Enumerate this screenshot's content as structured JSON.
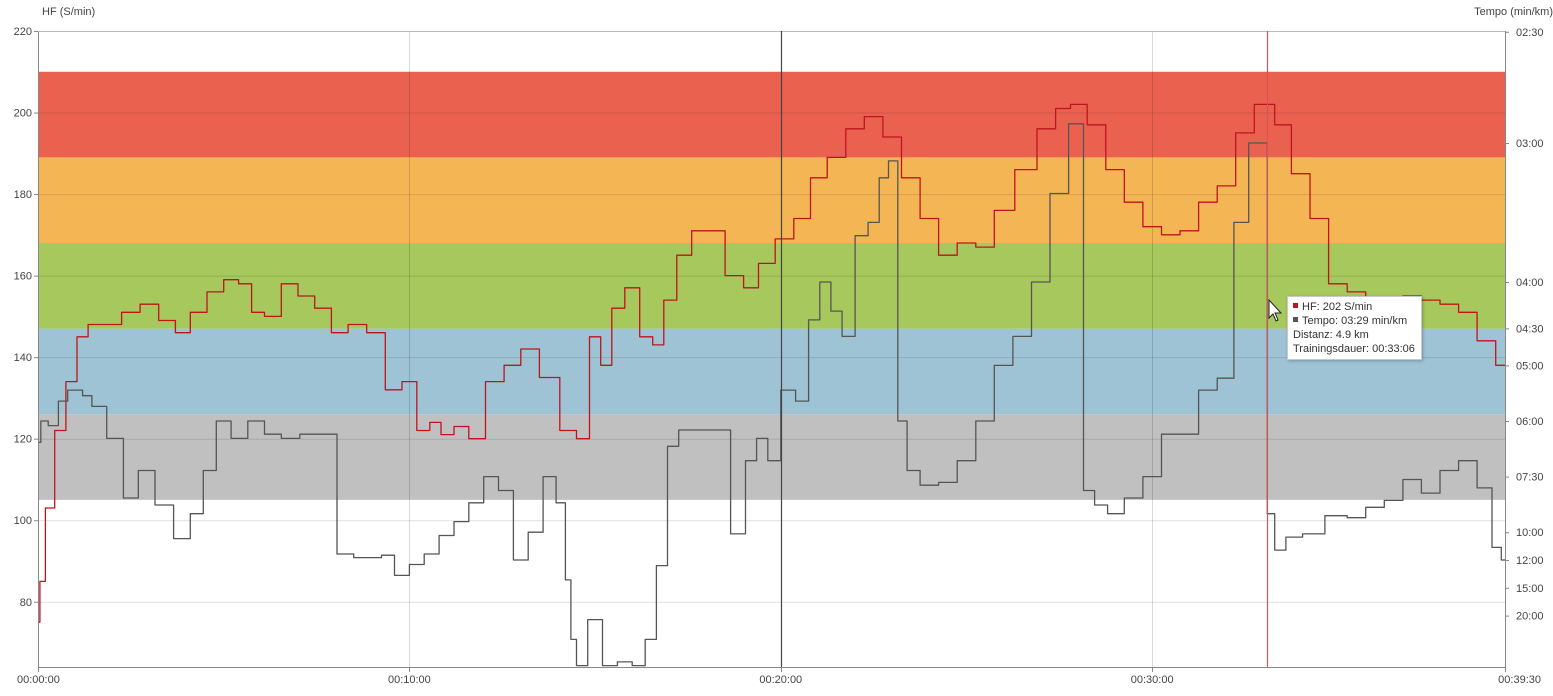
{
  "chart_data": {
    "type": "line",
    "left_axis_label": "HF (S/min)",
    "right_axis_label": "Tempo (min/km)",
    "left_axis": {
      "ticks": [
        80,
        100,
        120,
        140,
        160,
        180,
        200,
        220
      ],
      "range": [
        64,
        220
      ]
    },
    "right_axis": {
      "ticks": [
        {
          "label": "02:30",
          "pace_min": 2.5
        },
        {
          "label": "03:00",
          "pace_min": 3.0
        },
        {
          "label": "04:00",
          "pace_min": 4.0
        },
        {
          "label": "04:30",
          "pace_min": 4.5
        },
        {
          "label": "05:00",
          "pace_min": 5.0
        },
        {
          "label": "06:00",
          "pace_min": 6.0
        },
        {
          "label": "07:30",
          "pace_min": 7.5
        },
        {
          "label": "10:00",
          "pace_min": 10.0
        },
        {
          "label": "12:00",
          "pace_min": 12.0
        },
        {
          "label": "15:00",
          "pace_min": 15.0
        },
        {
          "label": "20:00",
          "pace_min": 20.0
        }
      ]
    },
    "x_axis": {
      "unit": "minutes",
      "range": [
        0,
        39.5
      ],
      "ticks": [
        {
          "label": "00:00:00",
          "min": 0
        },
        {
          "label": "00:10:00",
          "min": 10
        },
        {
          "label": "00:20:00",
          "min": 20
        },
        {
          "label": "00:30:00",
          "min": 30
        },
        {
          "label": "00:39:30",
          "min": 39.5
        }
      ]
    },
    "zones": [
      {
        "from": 105,
        "to": 126,
        "color": "#c0c0c0"
      },
      {
        "from": 126,
        "to": 147,
        "color": "#9dc3d5"
      },
      {
        "from": 147,
        "to": 168,
        "color": "#a7c85c"
      },
      {
        "from": 168,
        "to": 189,
        "color": "#f4b655"
      },
      {
        "from": 189,
        "to": 210,
        "color": "#eb6150"
      }
    ],
    "series": [
      {
        "name": "HF",
        "unit": "S/min",
        "color": "#c0141c",
        "x": [
          0,
          0.1,
          0.3,
          0.6,
          0.9,
          1.2,
          1.5,
          2.0,
          2.5,
          3.0,
          3.5,
          3.9,
          4.3,
          4.8,
          5.2,
          5.6,
          5.9,
          6.3,
          6.8,
          7.2,
          7.7,
          8.1,
          8.6,
          9.1,
          9.6,
          10.0,
          10.4,
          10.7,
          11.0,
          11.4,
          11.8,
          12.3,
          12.8,
          13.2,
          13.8,
          14.3,
          14.7,
          15.0,
          15.3,
          15.6,
          16.0,
          16.4,
          16.7,
          17.0,
          17.4,
          17.8,
          18.2,
          18.8,
          19.2,
          19.6,
          20.1,
          20.6,
          21.0,
          21.5,
          22.0,
          22.5,
          23.0,
          23.5,
          24.0,
          24.5,
          25.0,
          25.5,
          26.0,
          26.6,
          27.2,
          27.6,
          28.0,
          28.5,
          29.0,
          29.5,
          30.0,
          30.5,
          31.0,
          31.5,
          32.0,
          32.5,
          33.0,
          33.1,
          33.5,
          34.0,
          34.5,
          35.0,
          35.5,
          36.0,
          36.5,
          37.0,
          37.5,
          38.0,
          38.5,
          39.0,
          39.5
        ],
        "values": [
          75,
          85,
          103,
          122,
          134,
          145,
          148,
          148,
          151,
          153,
          149,
          146,
          151,
          156,
          159,
          158,
          151,
          150,
          158,
          155,
          152,
          146,
          148,
          146,
          132,
          134,
          122,
          124,
          121,
          123,
          120,
          134,
          138,
          142,
          135,
          122,
          120,
          145,
          138,
          152,
          157,
          145,
          143,
          154,
          165,
          171,
          171,
          160,
          157,
          163,
          169,
          174,
          184,
          189,
          196,
          199,
          194,
          184,
          174,
          165,
          168,
          167,
          176,
          186,
          196,
          201,
          202,
          197,
          186,
          178,
          172,
          170,
          171,
          178,
          182,
          195,
          202,
          202,
          197,
          185,
          174,
          158,
          156,
          154,
          153,
          155,
          154,
          153,
          151,
          144,
          138
        ]
      },
      {
        "name": "Tempo",
        "unit": "min/km",
        "color": "#555555",
        "x": [
          0,
          0.15,
          0.4,
          0.7,
          0.9,
          1.1,
          1.3,
          1.6,
          2.1,
          2.5,
          2.9,
          3.4,
          3.9,
          4.3,
          4.6,
          5.0,
          5.4,
          5.9,
          6.3,
          6.8,
          7.3,
          7.8,
          8.3,
          8.7,
          9.1,
          9.4,
          9.8,
          10.2,
          10.6,
          11.0,
          11.4,
          11.8,
          12.2,
          12.6,
          13.0,
          13.4,
          13.8,
          14.1,
          14.3,
          14.4,
          14.6,
          15.0,
          15.4,
          15.8,
          16.2,
          16.5,
          16.8,
          17.1,
          17.4,
          17.9,
          18.4,
          18.9,
          19.2,
          19.5,
          19.8,
          20.2,
          20.6,
          20.9,
          21.2,
          21.5,
          21.8,
          22.2,
          22.5,
          22.8,
          23.0,
          23.3,
          23.5,
          24.0,
          24.5,
          25.0,
          25.5,
          26.0,
          26.5,
          27.0,
          27.5,
          28.0,
          28.3,
          28.6,
          29.0,
          29.5,
          30.0,
          30.5,
          31.0,
          31.5,
          32.0,
          32.4,
          32.8,
          33.0,
          33.2,
          33.4,
          33.8,
          34.3,
          35.0,
          35.5,
          36.0,
          36.5,
          37.0,
          37.5,
          38.0,
          38.5,
          39.0,
          39.3,
          39.5
        ],
        "values": [
          6.5,
          6.0,
          6.1,
          5.6,
          5.4,
          5.4,
          5.5,
          5.7,
          6.4,
          8.3,
          7.3,
          8.6,
          10.4,
          9.0,
          7.3,
          6.0,
          6.4,
          6.0,
          6.3,
          6.4,
          6.3,
          6.3,
          11.5,
          11.8,
          11.8,
          11.6,
          13.5,
          12.4,
          11.5,
          10.2,
          9.4,
          8.5,
          7.5,
          8.0,
          12.0,
          10.0,
          7.5,
          8.5,
          14.0,
          28.0,
          50.0,
          21.0,
          50.0,
          45.0,
          50.0,
          28.0,
          12.5,
          6.6,
          6.2,
          6.2,
          6.2,
          10.1,
          7.0,
          6.4,
          7.0,
          5.4,
          5.6,
          4.4,
          4.0,
          4.3,
          4.6,
          3.6,
          3.5,
          3.2,
          3.1,
          6.0,
          7.3,
          7.8,
          7.7,
          7.0,
          6.0,
          5.0,
          4.6,
          4.0,
          3.3,
          2.9,
          8.0,
          8.6,
          9.0,
          8.3,
          7.5,
          6.3,
          6.3,
          5.4,
          5.2,
          3.5,
          3.0,
          3.0,
          9.0,
          11.2,
          10.3,
          10.1,
          9.1,
          9.2,
          8.7,
          8.4,
          7.6,
          8.1,
          7.3,
          7.0,
          7.9,
          11.0,
          12.0
        ]
      }
    ],
    "cursor_min": 33.1,
    "tooltip": {
      "hf": "HF: 202 S/min",
      "tempo": "Tempo: 03:29 min/km",
      "distanz": "Distanz: 4.9 km",
      "dauer": "Trainingsdauer: 00:33:06"
    }
  }
}
